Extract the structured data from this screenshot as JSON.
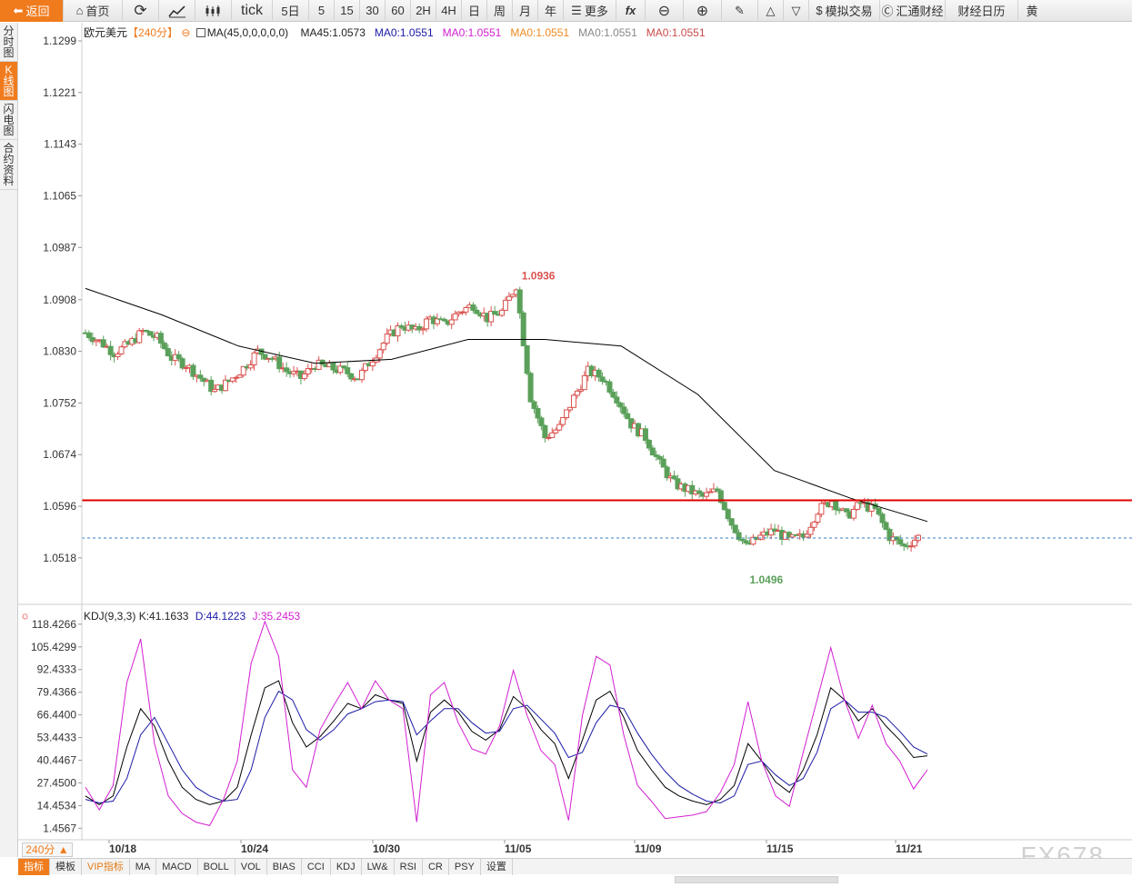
{
  "toolbar": {
    "back": "返回",
    "home": "首页",
    "refresh_icon": "refresh-icon",
    "chart_icon": "chart-icon",
    "candle_icon": "candle-icon",
    "items": [
      "tick",
      "5日",
      "5",
      "15",
      "30",
      "60",
      "2H",
      "4H",
      "日",
      "周",
      "月",
      "年"
    ],
    "more": "更多",
    "fx": "fx",
    "zoom_out": "⊖",
    "zoom_in": "⊕",
    "sim_trade": "模拟交易",
    "huitong": "汇通财经",
    "calendar": "财经日历",
    "gold": "黄"
  },
  "sidebar": {
    "tabs": [
      "分时图",
      "K线图",
      "闪电图",
      "合约资料"
    ],
    "active": 1
  },
  "main_legend": {
    "symbol": "欧元美元",
    "period": "【240分】",
    "ma_setting": "MA(45,0,0,0,0,0)",
    "ma_values": [
      {
        "text": "MA45:1.0573",
        "color": "#222222"
      },
      {
        "text": "MA0:1.0551",
        "color": "#1a1aa6"
      },
      {
        "text": "MA0:1.0551",
        "color": "#d21fd2"
      },
      {
        "text": "MA0:1.0551",
        "color": "#f08a1d"
      },
      {
        "text": "MA0:1.0551",
        "color": "#888888"
      },
      {
        "text": "MA0:1.0551",
        "color": "#c84b4b"
      }
    ]
  },
  "price_axis": [
    "1.1299",
    "1.1221",
    "1.1143",
    "1.1065",
    "1.0987",
    "1.0908",
    "1.0830",
    "1.0752",
    "1.0674",
    "1.0596",
    "1.0518"
  ],
  "annotations": {
    "high": "1.0936",
    "low": "1.0496"
  },
  "kdj_legend": {
    "name": "KDJ(9,3,3)",
    "k": "K:41.1633",
    "d": "D:44.1223",
    "j": "J:35.2453"
  },
  "kdj_axis": [
    "118.4266",
    "105.4299",
    "92.4333",
    "79.4366",
    "66.4400",
    "53.4433",
    "40.4467",
    "27.4500",
    "14.4534",
    "1.4567"
  ],
  "date_axis": [
    "10/18",
    "10/24",
    "10/30",
    "11/05",
    "11/09",
    "11/15",
    "11/21"
  ],
  "period_label": "240分 ▲",
  "indicators": [
    "指标",
    "模板",
    "VIP指标",
    "MA",
    "MACD",
    "BOLL",
    "VOL",
    "BIAS",
    "CCI",
    "KDJ",
    "LW&",
    "RSI",
    "CR",
    "PSY",
    "设置"
  ],
  "watermark": "FX678",
  "colors": {
    "up": "#d9534f",
    "down": "#5aa05a",
    "ma45": "#000000",
    "resistance": "#e00000",
    "current_line": "#3a7fc1",
    "accent": "#f07b1d"
  },
  "chart_data": [
    {
      "type": "candlestick",
      "title": "欧元美元 240分",
      "ylim": [
        1.0478,
        1.1299
      ],
      "x_labels": [
        "10/18",
        "10/24",
        "10/30",
        "11/05",
        "11/09",
        "11/15",
        "11/21"
      ],
      "high": 1.0936,
      "low": 1.0496,
      "ma45_key_points": [
        1.0925,
        1.0885,
        1.0838,
        1.0812,
        1.0818,
        1.0848,
        1.0848,
        1.0838,
        1.0765,
        1.065,
        1.0608,
        1.0573
      ],
      "close_path": [
        1.0858,
        1.0845,
        1.0828,
        1.084,
        1.086,
        1.085,
        1.082,
        1.081,
        1.079,
        1.077,
        1.0785,
        1.0805,
        1.083,
        1.082,
        1.08,
        1.079,
        1.081,
        1.0805,
        1.08,
        1.079,
        1.082,
        1.085,
        1.087,
        1.086,
        1.088,
        1.087,
        1.089,
        1.09,
        1.088,
        1.089,
        1.093,
        1.076,
        1.07,
        1.0715,
        1.076,
        1.08,
        1.079,
        1.076,
        1.072,
        1.07,
        1.066,
        1.063,
        1.062,
        1.061,
        1.062,
        1.057,
        1.0535,
        1.055,
        1.056,
        1.0545,
        1.055,
        1.059,
        1.0605,
        1.058,
        1.06,
        1.059,
        1.055,
        1.0535,
        1.055
      ],
      "resistance_line": 1.0605,
      "current_price": 1.0548
    },
    {
      "type": "line",
      "title": "KDJ(9,3,3)",
      "ylim": [
        -2,
        122
      ],
      "series": [
        {
          "name": "K",
          "values": [
            20,
            15,
            20,
            48,
            70,
            60,
            40,
            25,
            18,
            15,
            17,
            25,
            55,
            82,
            86,
            62,
            48,
            54,
            63,
            73,
            70,
            78,
            75,
            73,
            40,
            68,
            75,
            68,
            57,
            52,
            58,
            77,
            70,
            58,
            50,
            30,
            52,
            75,
            80,
            65,
            46,
            35,
            25,
            20,
            17,
            15,
            18,
            26,
            50,
            40,
            28,
            22,
            35,
            55,
            82,
            75,
            63,
            70,
            60,
            52,
            42,
            43
          ]
        },
        {
          "name": "D",
          "values": [
            18,
            16,
            17,
            30,
            55,
            65,
            50,
            35,
            25,
            20,
            17,
            18,
            35,
            65,
            80,
            75,
            58,
            52,
            58,
            67,
            70,
            74,
            75,
            74,
            55,
            63,
            70,
            70,
            62,
            56,
            57,
            70,
            72,
            64,
            56,
            42,
            45,
            62,
            72,
            70,
            56,
            44,
            34,
            26,
            21,
            17,
            16,
            20,
            38,
            40,
            32,
            26,
            30,
            45,
            70,
            75,
            68,
            68,
            65,
            57,
            48,
            44
          ]
        },
        {
          "name": "J",
          "values": [
            25,
            12,
            26,
            85,
            110,
            50,
            20,
            10,
            5,
            3,
            18,
            40,
            96,
            120,
            100,
            35,
            25,
            58,
            72,
            85,
            70,
            86,
            75,
            70,
            5,
            78,
            85,
            62,
            47,
            44,
            60,
            92,
            66,
            46,
            38,
            6,
            66,
            100,
            95,
            55,
            26,
            17,
            7,
            8,
            9,
            11,
            22,
            38,
            74,
            40,
            20,
            14,
            45,
            75,
            105,
            75,
            53,
            72,
            50,
            40,
            24,
            35
          ]
        }
      ]
    }
  ]
}
